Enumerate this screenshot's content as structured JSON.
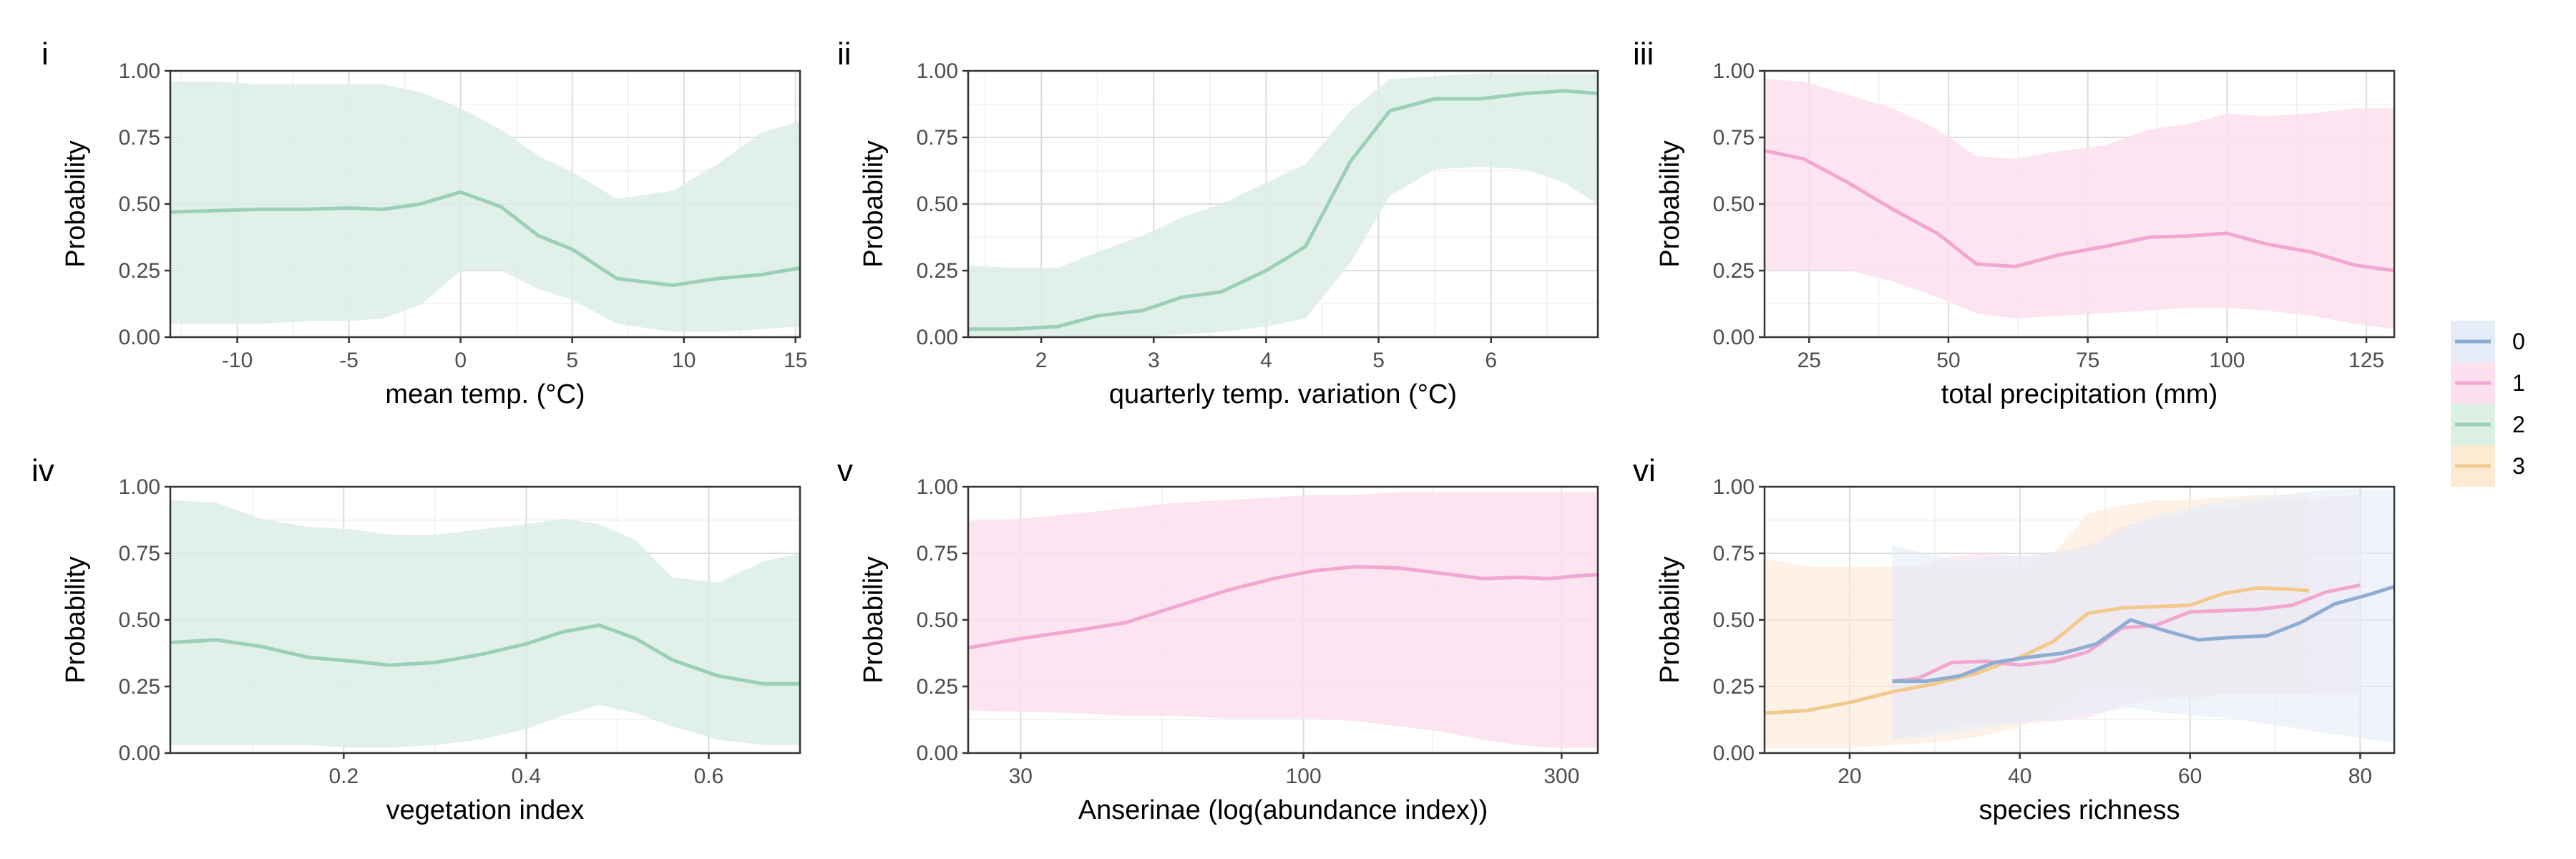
{
  "legend": {
    "entries": [
      {
        "label": "0",
        "color": "#8eadd2",
        "fill": "#e4ecf7"
      },
      {
        "label": "1",
        "color": "#f3a6cf",
        "fill": "#fce0ee"
      },
      {
        "label": "2",
        "color": "#9bcfb9",
        "fill": "#dcefe5"
      },
      {
        "label": "3",
        "color": "#f2c98c",
        "fill": "#fcead3"
      }
    ]
  },
  "chart_data": [
    {
      "tag": "i",
      "type": "line",
      "ylabel": "Probability",
      "xlabel": "mean temp. (°C)",
      "xlim": [
        -13,
        15.2
      ],
      "ylim": [
        0,
        1
      ],
      "xticks": [
        -10,
        -5,
        0,
        5,
        10,
        15
      ],
      "xtick_labels": [
        "-10",
        "-5",
        "0",
        "5",
        "10",
        "15"
      ],
      "xminor": [
        -12.5,
        -7.5,
        -2.5,
        2.5,
        7.5,
        12.5
      ],
      "yticks": [
        0,
        0.25,
        0.5,
        0.75,
        1.0
      ],
      "ytick_labels": [
        "0.00",
        "0.25",
        "0.50",
        "0.75",
        "1.00"
      ],
      "series": [
        {
          "class": "2",
          "x": [
            -13,
            -11,
            -9,
            -7,
            -5,
            -3.5,
            -1.8,
            0,
            1.8,
            3.5,
            5,
            7,
            9.5,
            11.5,
            13.5,
            15.2
          ],
          "y": [
            0.47,
            0.475,
            0.48,
            0.48,
            0.485,
            0.48,
            0.5,
            0.545,
            0.49,
            0.38,
            0.33,
            0.22,
            0.195,
            0.22,
            0.235,
            0.26
          ],
          "lower": [
            0.05,
            0.05,
            0.05,
            0.06,
            0.06,
            0.07,
            0.12,
            0.25,
            0.25,
            0.18,
            0.14,
            0.05,
            0.02,
            0.02,
            0.03,
            0.04
          ],
          "upper": [
            0.96,
            0.96,
            0.95,
            0.95,
            0.95,
            0.95,
            0.92,
            0.86,
            0.78,
            0.68,
            0.62,
            0.52,
            0.55,
            0.65,
            0.77,
            0.81
          ]
        }
      ]
    },
    {
      "tag": "ii",
      "type": "line",
      "ylabel": "Probability",
      "xlabel": "quarterly temp. variation (°C)",
      "xlim": [
        1.35,
        6.95
      ],
      "ylim": [
        0,
        1
      ],
      "xticks": [
        2,
        3,
        4,
        5,
        6
      ],
      "xtick_labels": [
        "2",
        "3",
        "4",
        "5",
        "6"
      ],
      "xminor": [
        1.5,
        2.5,
        3.5,
        4.5,
        5.5,
        6.5
      ],
      "yticks": [
        0,
        0.25,
        0.5,
        0.75,
        1.0
      ],
      "ytick_labels": [
        "0.00",
        "0.25",
        "0.50",
        "0.75",
        "1.00"
      ],
      "series": [
        {
          "class": "2",
          "x": [
            1.35,
            1.75,
            2.15,
            2.5,
            2.9,
            3.25,
            3.6,
            4.0,
            4.35,
            4.75,
            5.1,
            5.5,
            5.9,
            6.3,
            6.65,
            6.95
          ],
          "y": [
            0.03,
            0.03,
            0.04,
            0.08,
            0.1,
            0.15,
            0.17,
            0.25,
            0.34,
            0.66,
            0.85,
            0.895,
            0.895,
            0.915,
            0.925,
            0.915
          ],
          "lower": [
            0.0,
            0.0,
            0.0,
            0.0,
            0.0,
            0.01,
            0.02,
            0.04,
            0.07,
            0.28,
            0.53,
            0.63,
            0.64,
            0.63,
            0.58,
            0.5
          ],
          "upper": [
            0.27,
            0.26,
            0.26,
            0.32,
            0.38,
            0.45,
            0.5,
            0.58,
            0.65,
            0.85,
            0.97,
            0.98,
            0.99,
            0.99,
            0.99,
            0.99
          ]
        }
      ]
    },
    {
      "tag": "iii",
      "type": "line",
      "ylabel": "Probability",
      "xlabel": "total precipitation (mm)",
      "xlim": [
        17,
        130
      ],
      "ylim": [
        0,
        1
      ],
      "xticks": [
        25,
        50,
        75,
        100,
        125
      ],
      "xtick_labels": [
        "25",
        "50",
        "75",
        "100",
        "125"
      ],
      "xminor": [
        37.5,
        62.5,
        87.5,
        112.5
      ],
      "yticks": [
        0,
        0.25,
        0.5,
        0.75,
        1.0
      ],
      "ytick_labels": [
        "0.00",
        "0.25",
        "0.50",
        "0.75",
        "1.00"
      ],
      "series": [
        {
          "class": "1",
          "x": [
            17,
            24,
            32,
            40,
            48,
            55,
            62,
            70,
            78,
            86,
            93,
            100,
            107,
            115,
            123,
            130
          ],
          "y": [
            0.7,
            0.67,
            0.58,
            0.48,
            0.39,
            0.275,
            0.265,
            0.31,
            0.34,
            0.375,
            0.38,
            0.39,
            0.35,
            0.32,
            0.27,
            0.25
          ],
          "lower": [
            0.25,
            0.25,
            0.25,
            0.21,
            0.15,
            0.09,
            0.07,
            0.08,
            0.09,
            0.1,
            0.11,
            0.11,
            0.1,
            0.08,
            0.05,
            0.03
          ],
          "upper": [
            0.97,
            0.96,
            0.91,
            0.86,
            0.78,
            0.68,
            0.67,
            0.7,
            0.72,
            0.78,
            0.8,
            0.84,
            0.83,
            0.84,
            0.86,
            0.86
          ]
        }
      ]
    },
    {
      "tag": "iv",
      "type": "line",
      "ylabel": "Probability",
      "xlabel": "vegetation index",
      "xlim": [
        0.01,
        0.7
      ],
      "ylim": [
        0,
        1
      ],
      "xticks": [
        0.2,
        0.4,
        0.6
      ],
      "xtick_labels": [
        "0.2",
        "0.4",
        "0.6"
      ],
      "xminor": [
        0.1,
        0.3,
        0.5
      ],
      "yticks": [
        0,
        0.25,
        0.5,
        0.75,
        1.0
      ],
      "ytick_labels": [
        "0.00",
        "0.25",
        "0.50",
        "0.75",
        "1.00"
      ],
      "series": [
        {
          "class": "2",
          "x": [
            0.01,
            0.06,
            0.11,
            0.16,
            0.21,
            0.25,
            0.3,
            0.35,
            0.4,
            0.44,
            0.48,
            0.52,
            0.56,
            0.61,
            0.66,
            0.7
          ],
          "y": [
            0.415,
            0.425,
            0.4,
            0.36,
            0.345,
            0.33,
            0.34,
            0.37,
            0.41,
            0.455,
            0.48,
            0.43,
            0.35,
            0.29,
            0.26,
            0.26
          ],
          "lower": [
            0.03,
            0.03,
            0.03,
            0.03,
            0.02,
            0.02,
            0.03,
            0.05,
            0.09,
            0.14,
            0.18,
            0.15,
            0.1,
            0.05,
            0.03,
            0.03
          ],
          "upper": [
            0.95,
            0.94,
            0.88,
            0.85,
            0.84,
            0.82,
            0.82,
            0.84,
            0.86,
            0.88,
            0.86,
            0.8,
            0.66,
            0.64,
            0.72,
            0.75
          ]
        }
      ]
    },
    {
      "tag": "v",
      "type": "line",
      "ylabel": "Probability",
      "xlabel": "Anserinae (log(abundance index))",
      "xlim": [
        24,
        350
      ],
      "xscale": "log",
      "ylim": [
        0,
        1
      ],
      "xticks": [
        30,
        100,
        300
      ],
      "xtick_labels": [
        "30",
        "100",
        "300"
      ],
      "xminor": [
        54.77,
        173.2
      ],
      "yticks": [
        0,
        0.25,
        0.5,
        0.75,
        1.0
      ],
      "ytick_labels": [
        "0.00",
        "0.25",
        "0.50",
        "0.75",
        "1.00"
      ],
      "series": [
        {
          "class": "1",
          "x": [
            24,
            30,
            38,
            47,
            58,
            72,
            88,
            105,
            125,
            150,
            180,
            215,
            250,
            285,
            320,
            350
          ],
          "y": [
            0.395,
            0.43,
            0.46,
            0.49,
            0.55,
            0.61,
            0.655,
            0.685,
            0.7,
            0.695,
            0.675,
            0.655,
            0.66,
            0.655,
            0.665,
            0.67
          ],
          "lower": [
            0.16,
            0.155,
            0.15,
            0.14,
            0.14,
            0.13,
            0.13,
            0.13,
            0.12,
            0.1,
            0.08,
            0.05,
            0.03,
            0.02,
            0.02,
            0.02
          ],
          "upper": [
            0.87,
            0.88,
            0.9,
            0.92,
            0.94,
            0.95,
            0.96,
            0.97,
            0.97,
            0.98,
            0.98,
            0.98,
            0.98,
            0.98,
            0.98,
            0.98
          ]
        }
      ]
    },
    {
      "tag": "vi",
      "type": "line",
      "ylabel": "Probability",
      "xlabel": "species richness",
      "xlim": [
        10,
        84
      ],
      "ylim": [
        0,
        1
      ],
      "xticks": [
        20,
        40,
        60,
        80
      ],
      "xtick_labels": [
        "20",
        "40",
        "60",
        "80"
      ],
      "xminor": [
        10,
        30,
        50,
        70
      ],
      "yticks": [
        0,
        0.25,
        0.5,
        0.75,
        1.0
      ],
      "ytick_labels": [
        "0.00",
        "0.25",
        "0.50",
        "0.75",
        "1.00"
      ],
      "series": [
        {
          "class": "3",
          "x": [
            10,
            15,
            20,
            25,
            30,
            35,
            40,
            44,
            48,
            52,
            56,
            60,
            64,
            68,
            72,
            74
          ],
          "y": [
            0.15,
            0.16,
            0.19,
            0.23,
            0.26,
            0.3,
            0.36,
            0.42,
            0.525,
            0.545,
            0.55,
            0.555,
            0.6,
            0.62,
            0.615,
            0.61
          ],
          "lower": [
            0.02,
            0.02,
            0.02,
            0.03,
            0.04,
            0.06,
            0.1,
            0.15,
            0.24,
            0.24,
            0.22,
            0.2,
            0.22,
            0.22,
            0.22,
            0.22
          ],
          "upper": [
            0.73,
            0.7,
            0.7,
            0.7,
            0.7,
            0.69,
            0.7,
            0.75,
            0.9,
            0.93,
            0.95,
            0.95,
            0.96,
            0.97,
            0.97,
            0.97
          ]
        },
        {
          "class": "1",
          "x": [
            25,
            28,
            32,
            36,
            40,
            44,
            48,
            52,
            56,
            60,
            64,
            68,
            72,
            76,
            80
          ],
          "y": [
            0.27,
            0.28,
            0.34,
            0.345,
            0.33,
            0.345,
            0.38,
            0.47,
            0.48,
            0.53,
            0.535,
            0.54,
            0.555,
            0.605,
            0.63
          ],
          "lower": [
            0.05,
            0.07,
            0.1,
            0.11,
            0.11,
            0.12,
            0.13,
            0.18,
            0.2,
            0.22,
            0.22,
            0.22,
            0.22,
            0.22,
            0.22
          ],
          "upper": [
            0.7,
            0.7,
            0.74,
            0.75,
            0.74,
            0.75,
            0.78,
            0.85,
            0.88,
            0.9,
            0.92,
            0.94,
            0.95,
            0.96,
            0.97
          ]
        },
        {
          "class": "0",
          "x": [
            25,
            29,
            33,
            37,
            41,
            45,
            49,
            53,
            57,
            61,
            65,
            69,
            73,
            77,
            81,
            84
          ],
          "y": [
            0.27,
            0.27,
            0.29,
            0.34,
            0.36,
            0.375,
            0.41,
            0.5,
            0.46,
            0.425,
            0.435,
            0.44,
            0.49,
            0.56,
            0.595,
            0.625
          ],
          "lower": [
            0.05,
            0.06,
            0.08,
            0.1,
            0.12,
            0.13,
            0.15,
            0.17,
            0.15,
            0.14,
            0.13,
            0.11,
            0.09,
            0.07,
            0.05,
            0.04
          ],
          "upper": [
            0.78,
            0.75,
            0.72,
            0.74,
            0.74,
            0.76,
            0.78,
            0.86,
            0.9,
            0.93,
            0.95,
            0.96,
            0.98,
            0.99,
            0.99,
            0.99
          ]
        }
      ]
    }
  ]
}
